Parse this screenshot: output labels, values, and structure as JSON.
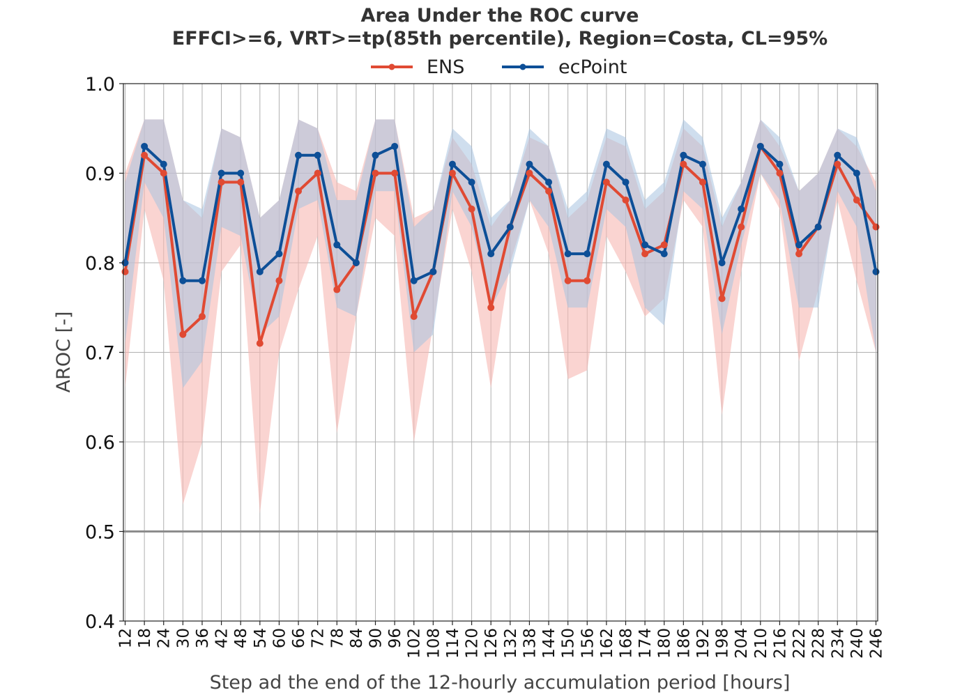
{
  "chart_data": {
    "type": "line",
    "title": "Area Under the ROC curve",
    "subtitle": "EFFCI>=6, VRT>=tp(85th percentile), Region=Costa, CL=95%",
    "xlabel": "Step ad the end of the 12-hourly accumulation period [hours]",
    "ylabel": "AROC [-]",
    "ylim": [
      0.4,
      1.0
    ],
    "yticks": [
      "0.4",
      "0.5",
      "0.6",
      "0.7",
      "0.8",
      "0.9",
      "1.0"
    ],
    "reference_line": 0.5,
    "grid": true,
    "legend_position": "top-center",
    "x": [
      12,
      18,
      24,
      30,
      36,
      42,
      48,
      54,
      60,
      66,
      72,
      78,
      84,
      90,
      96,
      102,
      108,
      114,
      120,
      126,
      132,
      138,
      144,
      150,
      156,
      162,
      168,
      174,
      180,
      186,
      192,
      198,
      204,
      210,
      216,
      222,
      228,
      234,
      240,
      246
    ],
    "series": [
      {
        "name": "ENS",
        "color": "#e04a33",
        "band_color": "#f6b8b2",
        "values": [
          0.79,
          0.92,
          0.9,
          0.72,
          0.74,
          0.89,
          0.89,
          0.71,
          0.78,
          0.88,
          0.9,
          0.77,
          0.8,
          0.9,
          0.9,
          0.74,
          0.79,
          0.9,
          0.86,
          0.75,
          0.84,
          0.9,
          0.88,
          0.78,
          0.78,
          0.89,
          0.87,
          0.81,
          0.82,
          0.91,
          0.89,
          0.76,
          0.84,
          0.93,
          0.9,
          0.81,
          0.84,
          0.91,
          0.87,
          0.84
        ],
        "lower": [
          0.66,
          0.86,
          0.78,
          0.53,
          0.6,
          0.79,
          0.82,
          0.52,
          0.7,
          0.77,
          0.83,
          0.61,
          0.74,
          0.85,
          0.83,
          0.6,
          0.73,
          0.86,
          0.79,
          0.66,
          0.8,
          0.87,
          0.81,
          0.67,
          0.68,
          0.83,
          0.79,
          0.74,
          0.76,
          0.87,
          0.84,
          0.63,
          0.79,
          0.9,
          0.86,
          0.69,
          0.77,
          0.87,
          0.78,
          0.7
        ],
        "upper": [
          0.9,
          0.96,
          0.96,
          0.87,
          0.85,
          0.95,
          0.94,
          0.85,
          0.87,
          0.96,
          0.95,
          0.89,
          0.88,
          0.96,
          0.96,
          0.85,
          0.86,
          0.94,
          0.91,
          0.84,
          0.87,
          0.94,
          0.93,
          0.85,
          0.87,
          0.94,
          0.93,
          0.86,
          0.88,
          0.95,
          0.93,
          0.84,
          0.89,
          0.96,
          0.93,
          0.88,
          0.9,
          0.95,
          0.93,
          0.89
        ]
      },
      {
        "name": "ecPoint",
        "color": "#0d4f97",
        "band_color": "#a8c3e0",
        "values": [
          0.8,
          0.93,
          0.91,
          0.78,
          0.78,
          0.9,
          0.9,
          0.79,
          0.81,
          0.92,
          0.92,
          0.82,
          0.8,
          0.92,
          0.93,
          0.78,
          0.79,
          0.91,
          0.89,
          0.81,
          0.84,
          0.91,
          0.89,
          0.81,
          0.81,
          0.91,
          0.89,
          0.82,
          0.81,
          0.92,
          0.91,
          0.8,
          0.86,
          0.93,
          0.91,
          0.82,
          0.84,
          0.92,
          0.9,
          0.79
        ],
        "lower": [
          0.71,
          0.89,
          0.85,
          0.66,
          0.69,
          0.84,
          0.83,
          0.72,
          0.74,
          0.86,
          0.87,
          0.75,
          0.74,
          0.88,
          0.88,
          0.7,
          0.72,
          0.88,
          0.84,
          0.75,
          0.79,
          0.87,
          0.84,
          0.75,
          0.75,
          0.86,
          0.84,
          0.75,
          0.73,
          0.88,
          0.86,
          0.72,
          0.82,
          0.9,
          0.87,
          0.75,
          0.75,
          0.88,
          0.84,
          0.7
        ],
        "upper": [
          0.89,
          0.96,
          0.96,
          0.87,
          0.86,
          0.95,
          0.94,
          0.85,
          0.87,
          0.96,
          0.95,
          0.87,
          0.87,
          0.96,
          0.96,
          0.84,
          0.86,
          0.95,
          0.93,
          0.85,
          0.87,
          0.95,
          0.93,
          0.86,
          0.88,
          0.95,
          0.94,
          0.87,
          0.89,
          0.96,
          0.94,
          0.85,
          0.89,
          0.96,
          0.94,
          0.88,
          0.9,
          0.95,
          0.94,
          0.88
        ]
      }
    ]
  }
}
